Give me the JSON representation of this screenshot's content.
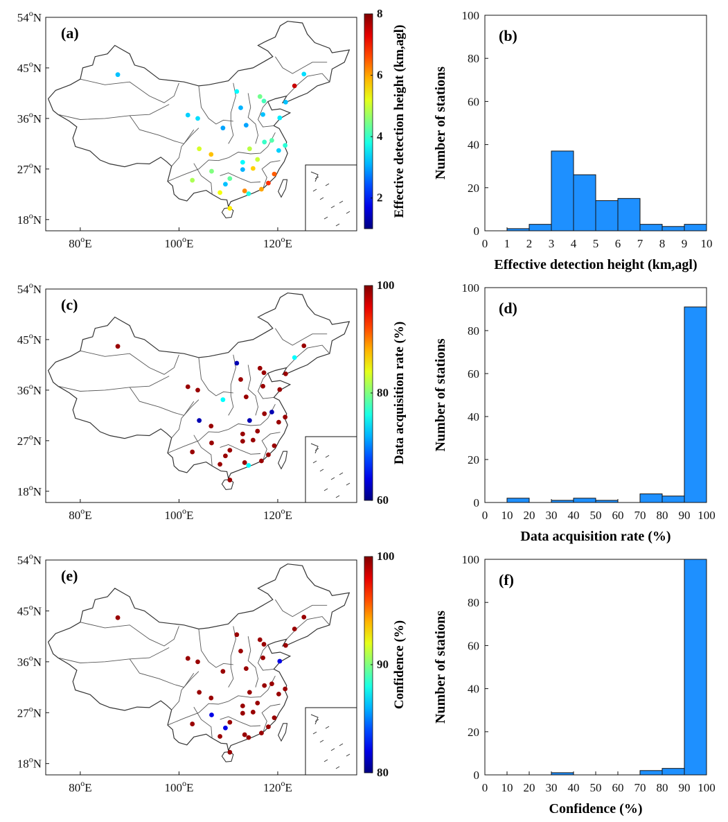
{
  "figure": {
    "rows": [
      {
        "map": {
          "label": "(a)",
          "lat_ticks": [
            "54",
            "45",
            "36",
            "27",
            "18"
          ],
          "lon_ticks": [
            "80",
            "100",
            "120"
          ],
          "lat_unit": "N",
          "lon_unit": "E",
          "colorbar": {
            "label": "Effective detection height (km,agl)",
            "ticks": [
              "8",
              "6",
              "4",
              "2"
            ],
            "range": [
              1,
              8
            ],
            "colormap": "jet"
          }
        },
        "histogram": {
          "label": "(b)",
          "xlabel": "Effective detection height (km,agl)",
          "ylabel": "Number of stations",
          "xticks": [
            "0",
            "1",
            "2",
            "3",
            "4",
            "5",
            "6",
            "7",
            "8",
            "9",
            "10"
          ],
          "yticks": [
            "0",
            "20",
            "40",
            "60",
            "80",
            "100"
          ]
        }
      },
      {
        "map": {
          "label": "(c)",
          "lat_ticks": [
            "54",
            "45",
            "36",
            "27",
            "18"
          ],
          "lon_ticks": [
            "80",
            "100",
            "120"
          ],
          "lat_unit": "N",
          "lon_unit": "E",
          "colorbar": {
            "label": "Data acquisition rate    (%)",
            "ticks": [
              "100",
              "80",
              "60"
            ],
            "range": [
              60,
              100
            ],
            "colormap": "jet"
          }
        },
        "histogram": {
          "label": "(d)",
          "xlabel": "Data acquisition rate    (%)",
          "ylabel": "Number of stations",
          "xticks": [
            "0",
            "10",
            "20",
            "30",
            "40",
            "50",
            "60",
            "70",
            "80",
            "90",
            "100"
          ],
          "yticks": [
            "0",
            "20",
            "40",
            "60",
            "80",
            "100"
          ]
        }
      },
      {
        "map": {
          "label": "(e)",
          "lat_ticks": [
            "54",
            "45",
            "36",
            "27",
            "18"
          ],
          "lon_ticks": [
            "80",
            "100",
            "120"
          ],
          "lat_unit": "N",
          "lon_unit": "E",
          "colorbar": {
            "label": "Confidence    (%)",
            "ticks": [
              "100",
              "90",
              "80"
            ],
            "range": [
              80,
              100
            ],
            "colormap": "jet"
          }
        },
        "histogram": {
          "label": "(f)",
          "xlabel": "Confidence    (%)",
          "ylabel": "Number of stations",
          "xticks": [
            "0",
            "10",
            "20",
            "30",
            "40",
            "50",
            "60",
            "70",
            "80",
            "90",
            "100"
          ],
          "yticks": [
            "0",
            "20",
            "40",
            "60",
            "80",
            "100"
          ]
        }
      }
    ],
    "bar_color": "#1e90ff",
    "degree_symbol": "o"
  },
  "chart_data": [
    {
      "type": "bar",
      "panel": "(b)",
      "bin_edges": [
        0,
        1,
        2,
        3,
        4,
        5,
        6,
        7,
        8,
        9,
        10
      ],
      "values": [
        0,
        1,
        3,
        37,
        26,
        14,
        15,
        3,
        2,
        3
      ],
      "xlabel": "Effective detection height (km,agl)",
      "ylabel": "Number of stations",
      "xlim": [
        0,
        10
      ],
      "ylim": [
        0,
        100
      ],
      "grid": false
    },
    {
      "type": "bar",
      "panel": "(d)",
      "bin_edges": [
        0,
        10,
        20,
        30,
        40,
        50,
        60,
        70,
        80,
        90,
        100
      ],
      "values": [
        0,
        2,
        0,
        1,
        2,
        1,
        0,
        4,
        3,
        91
      ],
      "xlabel": "Data acquisition rate    (%)",
      "ylabel": "Number of stations",
      "xlim": [
        0,
        100
      ],
      "ylim": [
        0,
        100
      ],
      "grid": false
    },
    {
      "type": "bar",
      "panel": "(f)",
      "bin_edges": [
        0,
        10,
        20,
        30,
        40,
        50,
        60,
        70,
        80,
        90,
        100
      ],
      "values": [
        0,
        0,
        0,
        1,
        0,
        0,
        0,
        2,
        3,
        100
      ],
      "xlabel": "Confidence    (%)",
      "ylabel": "Number of stations",
      "xlim": [
        0,
        100
      ],
      "ylim": [
        0,
        100
      ],
      "grid": false
    },
    {
      "type": "scatter",
      "panel": "(a)",
      "x_name": "longitude",
      "y_name": "latitude",
      "value_name": "Effective detection height (km,agl)",
      "xlim": [
        73,
        136
      ],
      "ylim": [
        16,
        54
      ],
      "clim": [
        1,
        8
      ],
      "points": [
        {
          "lon": 87.6,
          "lat": 43.8,
          "v": 3.2
        },
        {
          "lon": 101.8,
          "lat": 36.6,
          "v": 3.3
        },
        {
          "lon": 103.8,
          "lat": 36.0,
          "v": 3.4
        },
        {
          "lon": 104.1,
          "lat": 30.6,
          "v": 5.1
        },
        {
          "lon": 106.5,
          "lat": 29.6,
          "v": 5.8
        },
        {
          "lon": 108.9,
          "lat": 34.3,
          "v": 3.0
        },
        {
          "lon": 102.7,
          "lat": 25.0,
          "v": 4.8
        },
        {
          "lon": 106.6,
          "lat": 26.6,
          "v": 4.5
        },
        {
          "lon": 108.3,
          "lat": 22.8,
          "v": 5.3
        },
        {
          "lon": 110.3,
          "lat": 20.0,
          "v": 5.5
        },
        {
          "lon": 112.5,
          "lat": 37.9,
          "v": 3.1
        },
        {
          "lon": 113.6,
          "lat": 34.8,
          "v": 3.0
        },
        {
          "lon": 114.3,
          "lat": 30.6,
          "v": 4.9
        },
        {
          "lon": 112.9,
          "lat": 28.2,
          "v": 3.6
        },
        {
          "lon": 115.9,
          "lat": 28.7,
          "v": 5.0
        },
        {
          "lon": 113.3,
          "lat": 23.1,
          "v": 6.2
        },
        {
          "lon": 114.1,
          "lat": 22.6,
          "v": 3.8
        },
        {
          "lon": 116.4,
          "lat": 39.9,
          "v": 4.4
        },
        {
          "lon": 117.2,
          "lat": 39.1,
          "v": 4.1
        },
        {
          "lon": 117.0,
          "lat": 36.7,
          "v": 3.2
        },
        {
          "lon": 120.4,
          "lat": 36.1,
          "v": 3.5
        },
        {
          "lon": 118.8,
          "lat": 32.1,
          "v": 4.2
        },
        {
          "lon": 120.2,
          "lat": 30.3,
          "v": 3.3
        },
        {
          "lon": 121.5,
          "lat": 31.2,
          "v": 3.9
        },
        {
          "lon": 119.3,
          "lat": 26.1,
          "v": 6.5
        },
        {
          "lon": 118.1,
          "lat": 24.5,
          "v": 6.8
        },
        {
          "lon": 117.3,
          "lat": 31.8,
          "v": 4.0
        },
        {
          "lon": 123.4,
          "lat": 41.8,
          "v": 7.5
        },
        {
          "lon": 125.3,
          "lat": 43.9,
          "v": 3.4
        },
        {
          "lon": 121.6,
          "lat": 38.9,
          "v": 3.2
        },
        {
          "lon": 111.7,
          "lat": 40.8,
          "v": 3.6
        },
        {
          "lon": 116.7,
          "lat": 23.4,
          "v": 6.0
        },
        {
          "lon": 110.3,
          "lat": 25.3,
          "v": 4.3
        },
        {
          "lon": 109.4,
          "lat": 24.3,
          "v": 3.2
        },
        {
          "lon": 112.9,
          "lat": 26.9,
          "v": 3.1
        },
        {
          "lon": 115.0,
          "lat": 27.1,
          "v": 5.7
        }
      ]
    }
  ]
}
